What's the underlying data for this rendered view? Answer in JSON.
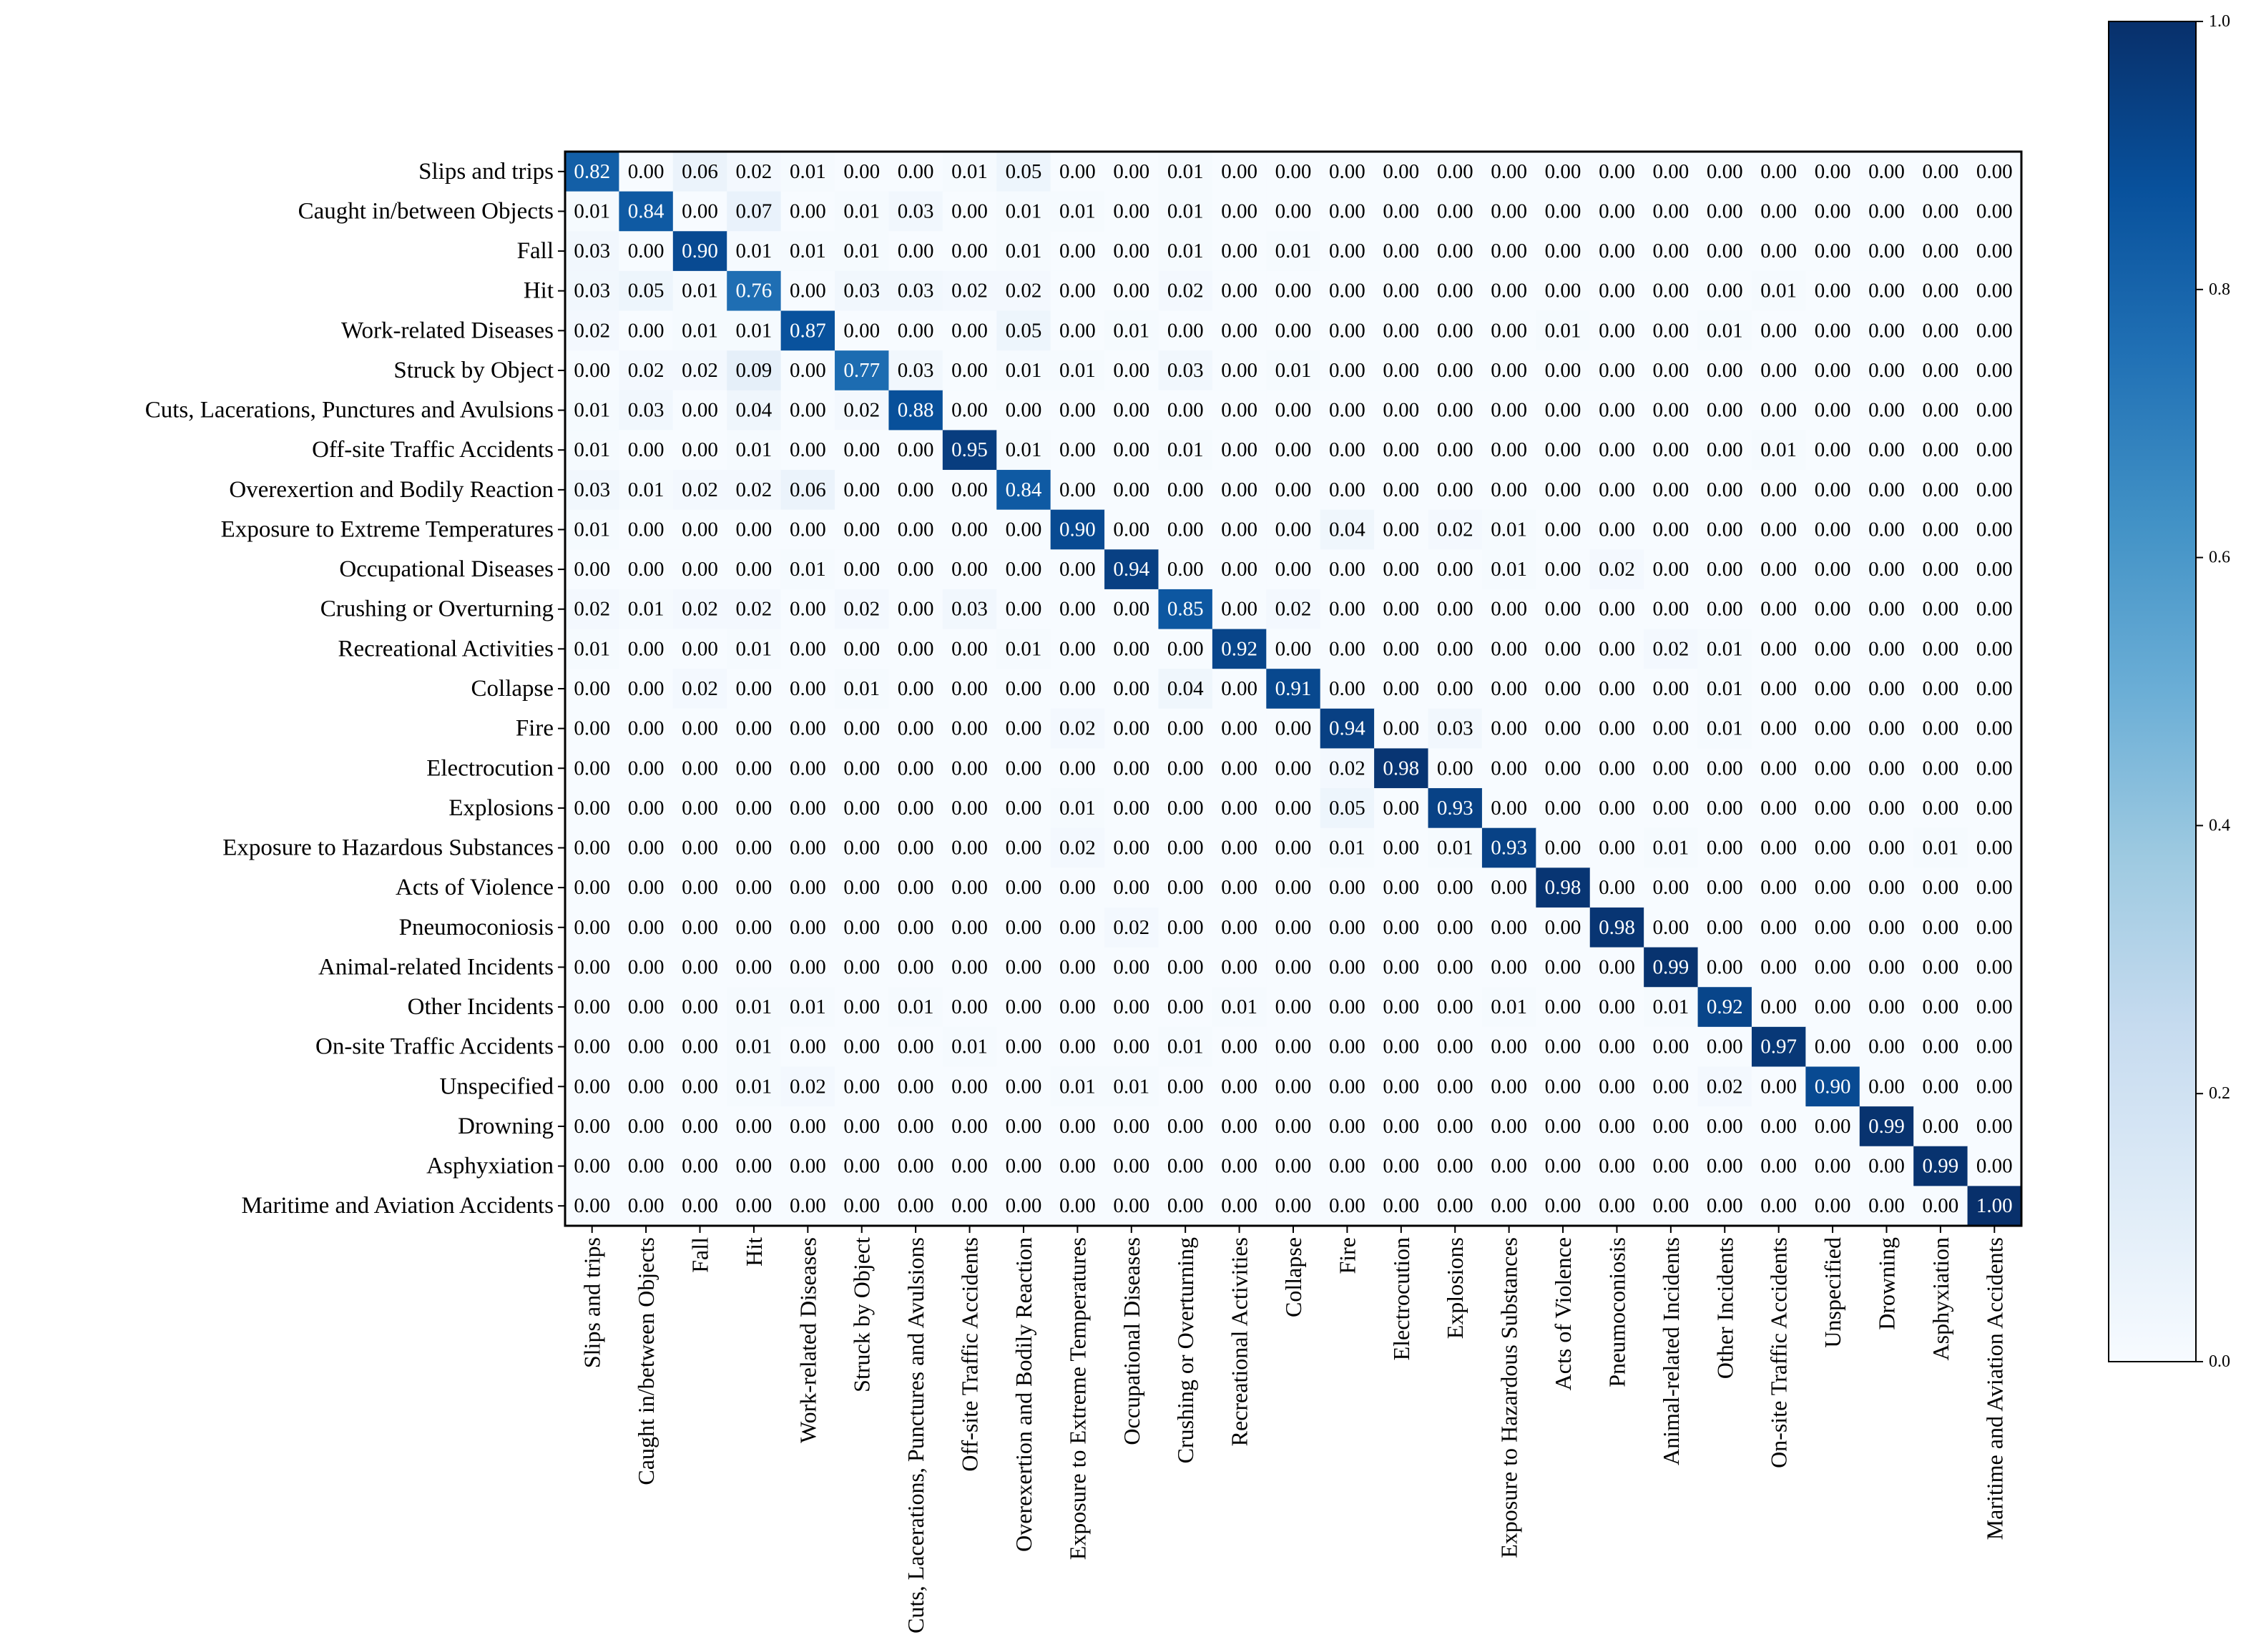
{
  "chart_data": {
    "type": "heatmap",
    "title": "",
    "xlabel": "",
    "ylabel": "",
    "colormap": "Blues",
    "color_low": "#f7fbff",
    "color_high": "#08306b",
    "vmin": 0,
    "vmax": 1,
    "colorbar_ticks": [
      "0.0",
      "0.2",
      "0.4",
      "0.6",
      "0.8",
      "1.0"
    ],
    "labels": [
      "Slips and trips",
      "Caught in/between Objects",
      "Fall",
      "Hit",
      "Work-related Diseases",
      "Struck by Object",
      "Cuts, Lacerations, Punctures and Avulsions",
      "Off-site Traffic Accidents",
      "Overexertion and Bodily Reaction",
      "Exposure to Extreme Temperatures",
      "Occupational Diseases",
      "Crushing or Overturning",
      "Recreational Activities",
      "Collapse",
      "Fire",
      "Electrocution",
      "Explosions",
      "Exposure to Hazardous Substances",
      "Acts of Violence",
      "Pneumoconiosis",
      "Animal-related Incidents",
      "Other Incidents",
      "On-site Traffic Accidents",
      "Unspecified",
      "Drowning",
      "Asphyxiation",
      "Maritime and Aviation Accidents"
    ],
    "matrix": [
      [
        0.82,
        0.0,
        0.06,
        0.02,
        0.01,
        0.0,
        0.0,
        0.01,
        0.05,
        0.0,
        0.0,
        0.01,
        0.0,
        0.0,
        0.0,
        0.0,
        0.0,
        0.0,
        0.0,
        0.0,
        0.0,
        0.0,
        0.0,
        0.0,
        0.0,
        0.0,
        0.0
      ],
      [
        0.01,
        0.84,
        0.0,
        0.07,
        0.0,
        0.01,
        0.03,
        0.0,
        0.01,
        0.01,
        0.0,
        0.01,
        0.0,
        0.0,
        0.0,
        0.0,
        0.0,
        0.0,
        0.0,
        0.0,
        0.0,
        0.0,
        0.0,
        0.0,
        0.0,
        0.0,
        0.0
      ],
      [
        0.03,
        0.0,
        0.9,
        0.01,
        0.01,
        0.01,
        0.0,
        0.0,
        0.01,
        0.0,
        0.0,
        0.01,
        0.0,
        0.01,
        0.0,
        0.0,
        0.0,
        0.0,
        0.0,
        0.0,
        0.0,
        0.0,
        0.0,
        0.0,
        0.0,
        0.0,
        0.0
      ],
      [
        0.03,
        0.05,
        0.01,
        0.76,
        0.0,
        0.03,
        0.03,
        0.02,
        0.02,
        0.0,
        0.0,
        0.02,
        0.0,
        0.0,
        0.0,
        0.0,
        0.0,
        0.0,
        0.0,
        0.0,
        0.0,
        0.0,
        0.01,
        0.0,
        0.0,
        0.0,
        0.0
      ],
      [
        0.02,
        0.0,
        0.01,
        0.01,
        0.87,
        0.0,
        0.0,
        0.0,
        0.05,
        0.0,
        0.01,
        0.0,
        0.0,
        0.0,
        0.0,
        0.0,
        0.0,
        0.0,
        0.01,
        0.0,
        0.0,
        0.01,
        0.0,
        0.0,
        0.0,
        0.0,
        0.0
      ],
      [
        0.0,
        0.02,
        0.02,
        0.09,
        0.0,
        0.77,
        0.03,
        0.0,
        0.01,
        0.01,
        0.0,
        0.03,
        0.0,
        0.01,
        0.0,
        0.0,
        0.0,
        0.0,
        0.0,
        0.0,
        0.0,
        0.0,
        0.0,
        0.0,
        0.0,
        0.0,
        0.0
      ],
      [
        0.01,
        0.03,
        0.0,
        0.04,
        0.0,
        0.02,
        0.88,
        0.0,
        0.0,
        0.0,
        0.0,
        0.0,
        0.0,
        0.0,
        0.0,
        0.0,
        0.0,
        0.0,
        0.0,
        0.0,
        0.0,
        0.0,
        0.0,
        0.0,
        0.0,
        0.0,
        0.0
      ],
      [
        0.01,
        0.0,
        0.0,
        0.01,
        0.0,
        0.0,
        0.0,
        0.95,
        0.01,
        0.0,
        0.0,
        0.01,
        0.0,
        0.0,
        0.0,
        0.0,
        0.0,
        0.0,
        0.0,
        0.0,
        0.0,
        0.0,
        0.01,
        0.0,
        0.0,
        0.0,
        0.0
      ],
      [
        0.03,
        0.01,
        0.02,
        0.02,
        0.06,
        0.0,
        0.0,
        0.0,
        0.84,
        0.0,
        0.0,
        0.0,
        0.0,
        0.0,
        0.0,
        0.0,
        0.0,
        0.0,
        0.0,
        0.0,
        0.0,
        0.0,
        0.0,
        0.0,
        0.0,
        0.0,
        0.0
      ],
      [
        0.01,
        0.0,
        0.0,
        0.0,
        0.0,
        0.0,
        0.0,
        0.0,
        0.0,
        0.9,
        0.0,
        0.0,
        0.0,
        0.0,
        0.04,
        0.0,
        0.02,
        0.01,
        0.0,
        0.0,
        0.0,
        0.0,
        0.0,
        0.0,
        0.0,
        0.0,
        0.0
      ],
      [
        0.0,
        0.0,
        0.0,
        0.0,
        0.01,
        0.0,
        0.0,
        0.0,
        0.0,
        0.0,
        0.94,
        0.0,
        0.0,
        0.0,
        0.0,
        0.0,
        0.0,
        0.01,
        0.0,
        0.02,
        0.0,
        0.0,
        0.0,
        0.0,
        0.0,
        0.0,
        0.0
      ],
      [
        0.02,
        0.01,
        0.02,
        0.02,
        0.0,
        0.02,
        0.0,
        0.03,
        0.0,
        0.0,
        0.0,
        0.85,
        0.0,
        0.02,
        0.0,
        0.0,
        0.0,
        0.0,
        0.0,
        0.0,
        0.0,
        0.0,
        0.0,
        0.0,
        0.0,
        0.0,
        0.0
      ],
      [
        0.01,
        0.0,
        0.0,
        0.01,
        0.0,
        0.0,
        0.0,
        0.0,
        0.01,
        0.0,
        0.0,
        0.0,
        0.92,
        0.0,
        0.0,
        0.0,
        0.0,
        0.0,
        0.0,
        0.0,
        0.02,
        0.01,
        0.0,
        0.0,
        0.0,
        0.0,
        0.0
      ],
      [
        0.0,
        0.0,
        0.02,
        0.0,
        0.0,
        0.01,
        0.0,
        0.0,
        0.0,
        0.0,
        0.0,
        0.04,
        0.0,
        0.91,
        0.0,
        0.0,
        0.0,
        0.0,
        0.0,
        0.0,
        0.0,
        0.01,
        0.0,
        0.0,
        0.0,
        0.0,
        0.0
      ],
      [
        0.0,
        0.0,
        0.0,
        0.0,
        0.0,
        0.0,
        0.0,
        0.0,
        0.0,
        0.02,
        0.0,
        0.0,
        0.0,
        0.0,
        0.94,
        0.0,
        0.03,
        0.0,
        0.0,
        0.0,
        0.0,
        0.01,
        0.0,
        0.0,
        0.0,
        0.0,
        0.0
      ],
      [
        0.0,
        0.0,
        0.0,
        0.0,
        0.0,
        0.0,
        0.0,
        0.0,
        0.0,
        0.0,
        0.0,
        0.0,
        0.0,
        0.0,
        0.02,
        0.98,
        0.0,
        0.0,
        0.0,
        0.0,
        0.0,
        0.0,
        0.0,
        0.0,
        0.0,
        0.0,
        0.0
      ],
      [
        0.0,
        0.0,
        0.0,
        0.0,
        0.0,
        0.0,
        0.0,
        0.0,
        0.0,
        0.01,
        0.0,
        0.0,
        0.0,
        0.0,
        0.05,
        0.0,
        0.93,
        0.0,
        0.0,
        0.0,
        0.0,
        0.0,
        0.0,
        0.0,
        0.0,
        0.0,
        0.0
      ],
      [
        0.0,
        0.0,
        0.0,
        0.0,
        0.0,
        0.0,
        0.0,
        0.0,
        0.0,
        0.02,
        0.0,
        0.0,
        0.0,
        0.0,
        0.01,
        0.0,
        0.01,
        0.93,
        0.0,
        0.0,
        0.01,
        0.0,
        0.0,
        0.0,
        0.0,
        0.01,
        0.0
      ],
      [
        0.0,
        0.0,
        0.0,
        0.0,
        0.0,
        0.0,
        0.0,
        0.0,
        0.0,
        0.0,
        0.0,
        0.0,
        0.0,
        0.0,
        0.0,
        0.0,
        0.0,
        0.0,
        0.98,
        0.0,
        0.0,
        0.0,
        0.0,
        0.0,
        0.0,
        0.0,
        0.0
      ],
      [
        0.0,
        0.0,
        0.0,
        0.0,
        0.0,
        0.0,
        0.0,
        0.0,
        0.0,
        0.0,
        0.02,
        0.0,
        0.0,
        0.0,
        0.0,
        0.0,
        0.0,
        0.0,
        0.0,
        0.98,
        0.0,
        0.0,
        0.0,
        0.0,
        0.0,
        0.0,
        0.0
      ],
      [
        0.0,
        0.0,
        0.0,
        0.0,
        0.0,
        0.0,
        0.0,
        0.0,
        0.0,
        0.0,
        0.0,
        0.0,
        0.0,
        0.0,
        0.0,
        0.0,
        0.0,
        0.0,
        0.0,
        0.0,
        0.99,
        0.0,
        0.0,
        0.0,
        0.0,
        0.0,
        0.0
      ],
      [
        0.0,
        0.0,
        0.0,
        0.01,
        0.01,
        0.0,
        0.01,
        0.0,
        0.0,
        0.0,
        0.0,
        0.0,
        0.01,
        0.0,
        0.0,
        0.0,
        0.0,
        0.01,
        0.0,
        0.0,
        0.01,
        0.92,
        0.0,
        0.0,
        0.0,
        0.0,
        0.0
      ],
      [
        0.0,
        0.0,
        0.0,
        0.01,
        0.0,
        0.0,
        0.0,
        0.01,
        0.0,
        0.0,
        0.0,
        0.01,
        0.0,
        0.0,
        0.0,
        0.0,
        0.0,
        0.0,
        0.0,
        0.0,
        0.0,
        0.0,
        0.97,
        0.0,
        0.0,
        0.0,
        0.0
      ],
      [
        0.0,
        0.0,
        0.0,
        0.01,
        0.02,
        0.0,
        0.0,
        0.0,
        0.0,
        0.01,
        0.01,
        0.0,
        0.0,
        0.0,
        0.0,
        0.0,
        0.0,
        0.0,
        0.0,
        0.0,
        0.0,
        0.02,
        0.0,
        0.9,
        0.0,
        0.0,
        0.0
      ],
      [
        0.0,
        0.0,
        0.0,
        0.0,
        0.0,
        0.0,
        0.0,
        0.0,
        0.0,
        0.0,
        0.0,
        0.0,
        0.0,
        0.0,
        0.0,
        0.0,
        0.0,
        0.0,
        0.0,
        0.0,
        0.0,
        0.0,
        0.0,
        0.0,
        0.99,
        0.0,
        0.0
      ],
      [
        0.0,
        0.0,
        0.0,
        0.0,
        0.0,
        0.0,
        0.0,
        0.0,
        0.0,
        0.0,
        0.0,
        0.0,
        0.0,
        0.0,
        0.0,
        0.0,
        0.0,
        0.0,
        0.0,
        0.0,
        0.0,
        0.0,
        0.0,
        0.0,
        0.0,
        0.99,
        0.0
      ],
      [
        0.0,
        0.0,
        0.0,
        0.0,
        0.0,
        0.0,
        0.0,
        0.0,
        0.0,
        0.0,
        0.0,
        0.0,
        0.0,
        0.0,
        0.0,
        0.0,
        0.0,
        0.0,
        0.0,
        0.0,
        0.0,
        0.0,
        0.0,
        0.0,
        0.0,
        0.0,
        1.0
      ]
    ]
  }
}
